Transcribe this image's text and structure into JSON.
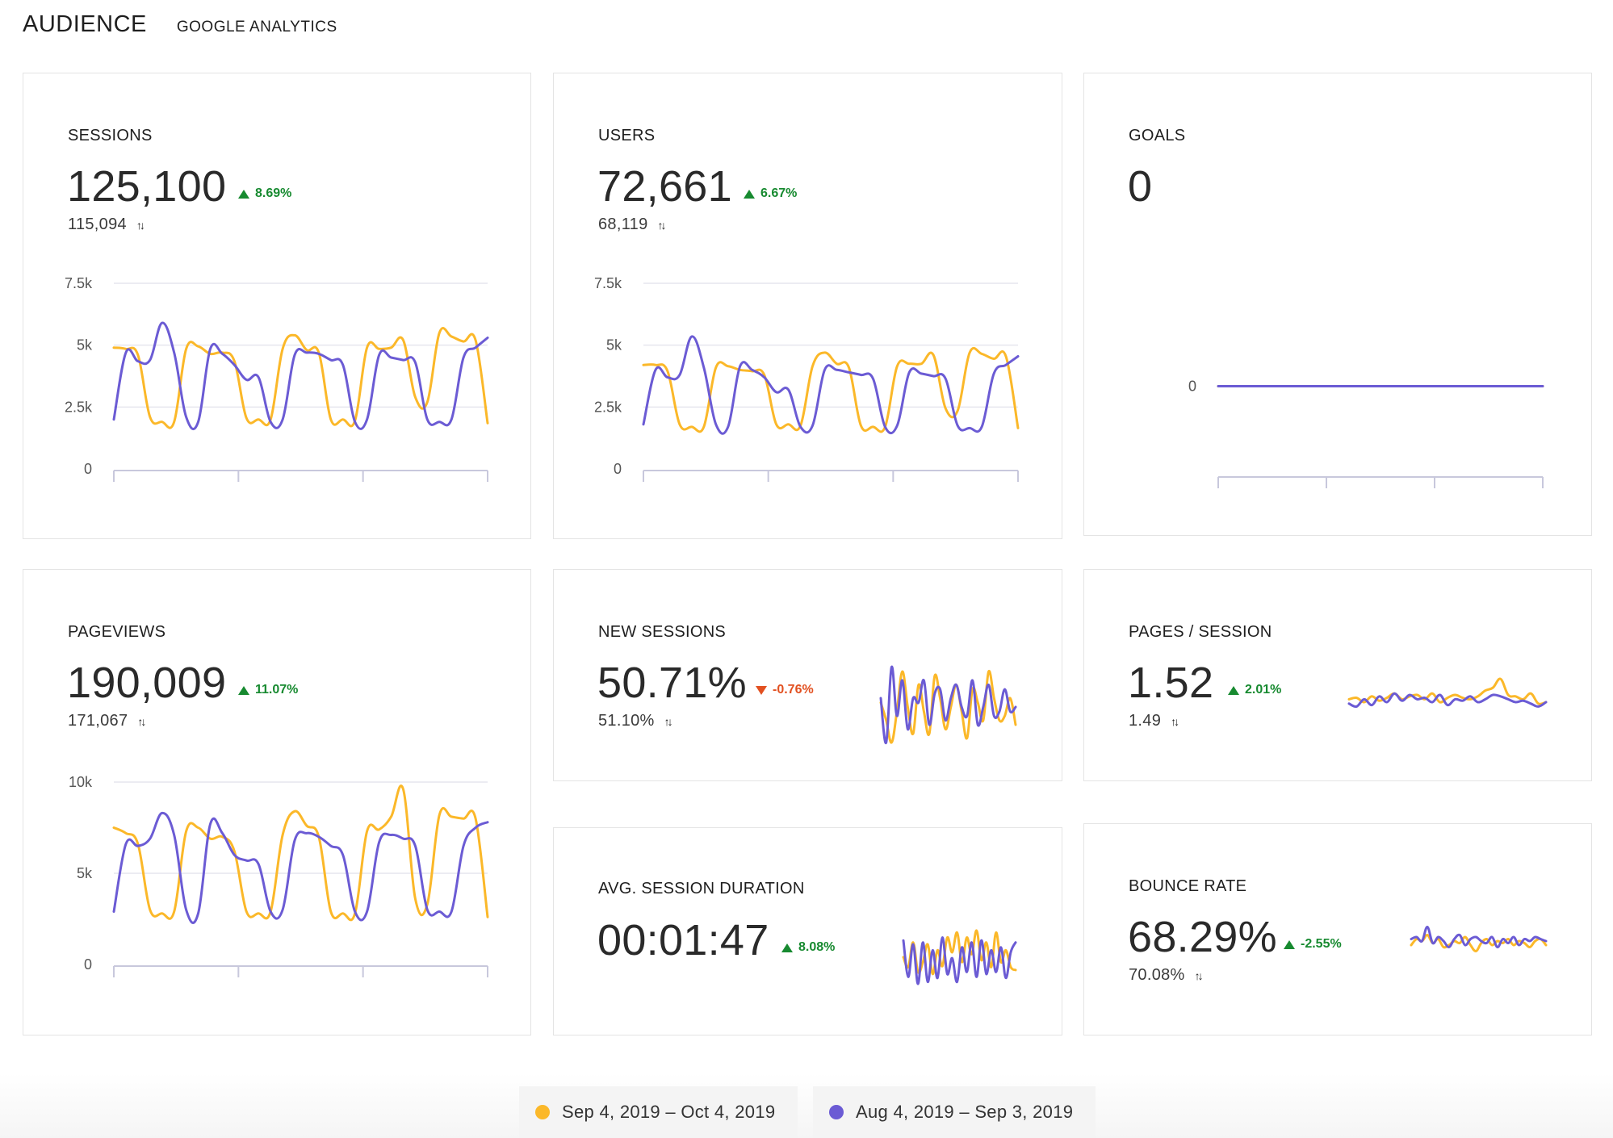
{
  "header": {
    "title": "AUDIENCE",
    "subtitle": "GOOGLE ANALYTICS"
  },
  "colors": {
    "current": "#fbb829",
    "previous": "#6b5bd4",
    "positive": "#178a30",
    "negative": "#e25020"
  },
  "cards": {
    "sessions": {
      "label": "SESSIONS",
      "value": "125,100",
      "delta": "8.69%",
      "trend": "up",
      "previous": "115,094"
    },
    "users": {
      "label": "USERS",
      "value": "72,661",
      "delta": "6.67%",
      "trend": "up",
      "previous": "68,119"
    },
    "goals": {
      "label": "GOALS",
      "value": "0"
    },
    "pageviews": {
      "label": "PAGEVIEWS",
      "value": "190,009",
      "delta": "11.07%",
      "trend": "up",
      "previous": "171,067"
    },
    "new_sessions": {
      "label": "NEW SESSIONS",
      "value": "50.71%",
      "delta": "-0.76%",
      "trend": "down",
      "previous": "51.10%"
    },
    "pages_session": {
      "label": "PAGES / SESSION",
      "value": "1.52",
      "delta": "2.01%",
      "trend": "up",
      "previous": "1.49"
    },
    "avg_duration": {
      "label": "AVG. SESSION DURATION",
      "value": "00:01:47",
      "delta": "8.08%",
      "trend": "up"
    },
    "bounce_rate": {
      "label": "BOUNCE RATE",
      "value": "68.29%",
      "delta": "-2.55%",
      "trend": "up",
      "previous": "70.08%"
    }
  },
  "legend": {
    "current": "Sep 4, 2019 – Oct 4, 2019",
    "previous": "Aug 4, 2019 – Sep 3, 2019"
  },
  "chart_data": [
    {
      "id": "sessions",
      "type": "line",
      "ylim": [
        0,
        7500
      ],
      "yticks": [
        {
          "v": 0,
          "label": "0"
        },
        {
          "v": 2500,
          "label": "2.5k"
        },
        {
          "v": 5000,
          "label": "5k"
        },
        {
          "v": 7500,
          "label": "7.5k"
        }
      ],
      "series": [
        {
          "values": [
            4900,
            4850,
            4600,
            2100,
            1900,
            1900,
            4850,
            4950,
            4650,
            4700,
            4350,
            2050,
            2000,
            2000,
            4850,
            5400,
            4800,
            4700,
            2000,
            2000,
            1950,
            4900,
            4850,
            4900,
            5200,
            2900,
            2700,
            5500,
            5350,
            5150,
            5200,
            1850
          ]
        },
        {
          "values": [
            2000,
            4700,
            4350,
            4400,
            5900,
            4700,
            2100,
            1900,
            4850,
            4650,
            4200,
            3600,
            3700,
            1900,
            2000,
            4600,
            4700,
            4650,
            4400,
            4200,
            1900,
            2000,
            4600,
            4500,
            4400,
            4300,
            2000,
            1900,
            2000,
            4500,
            4900,
            5300
          ]
        }
      ]
    },
    {
      "id": "users",
      "type": "line",
      "ylim": [
        0,
        7500
      ],
      "yticks": [
        {
          "v": 0,
          "label": "0"
        },
        {
          "v": 2500,
          "label": "2.5k"
        },
        {
          "v": 5000,
          "label": "5k"
        },
        {
          "v": 7500,
          "label": "7.5k"
        }
      ],
      "series": [
        {
          "values": [
            4200,
            4200,
            3950,
            1800,
            1700,
            1700,
            4100,
            4150,
            4000,
            3950,
            3800,
            1800,
            1800,
            1750,
            4150,
            4700,
            4250,
            4100,
            1750,
            1700,
            1700,
            4150,
            4250,
            4250,
            4600,
            2450,
            2350,
            4700,
            4650,
            4450,
            4550,
            1650
          ]
        },
        {
          "values": [
            1800,
            4000,
            3700,
            3800,
            5350,
            4100,
            1800,
            1700,
            4150,
            4000,
            3700,
            3100,
            3200,
            1700,
            1750,
            4000,
            4000,
            3900,
            3800,
            3650,
            1700,
            1750,
            3900,
            3850,
            3750,
            3650,
            1750,
            1650,
            1700,
            3850,
            4200,
            4550
          ]
        }
      ]
    },
    {
      "id": "goals",
      "type": "line",
      "ylim": [
        -1,
        1
      ],
      "yticks": [
        {
          "v": 0,
          "label": "0"
        }
      ],
      "series": [
        {
          "values": [
            0,
            0,
            0,
            0,
            0,
            0,
            0,
            0,
            0,
            0,
            0,
            0,
            0,
            0,
            0,
            0,
            0,
            0,
            0,
            0,
            0,
            0,
            0,
            0,
            0,
            0,
            0,
            0,
            0,
            0,
            0,
            0
          ]
        },
        {
          "values": [
            0,
            0,
            0,
            0,
            0,
            0,
            0,
            0,
            0,
            0,
            0,
            0,
            0,
            0,
            0,
            0,
            0,
            0,
            0,
            0,
            0,
            0,
            0,
            0,
            0,
            0,
            0,
            0,
            0,
            0,
            0,
            0
          ]
        }
      ]
    },
    {
      "id": "pageviews",
      "type": "line",
      "ylim": [
        0,
        10000
      ],
      "yticks": [
        {
          "v": 0,
          "label": "0"
        },
        {
          "v": 5000,
          "label": "5k"
        },
        {
          "v": 10000,
          "label": "10k"
        }
      ],
      "series": [
        {
          "values": [
            7500,
            7200,
            6600,
            3000,
            2800,
            2900,
            7300,
            7500,
            6900,
            7000,
            6200,
            2900,
            2800,
            2900,
            7100,
            8400,
            7600,
            7000,
            2900,
            2800,
            2800,
            7300,
            7400,
            8100,
            9600,
            3600,
            3300,
            8200,
            8100,
            8000,
            8000,
            2600
          ]
        },
        {
          "values": [
            2900,
            6600,
            6500,
            6900,
            8300,
            7100,
            3000,
            2800,
            7700,
            7200,
            6000,
            5700,
            5500,
            2900,
            3000,
            6800,
            7200,
            7000,
            6500,
            6000,
            2900,
            2900,
            6700,
            7100,
            6900,
            6500,
            3000,
            2900,
            2900,
            6500,
            7500,
            7800
          ]
        }
      ]
    },
    {
      "id": "new_sessions",
      "type": "line",
      "ylim": [
        40,
        60
      ],
      "series": [
        {
          "values": [
            51,
            47,
            42,
            49,
            58,
            50,
            44,
            55,
            49,
            44,
            57,
            52,
            45,
            50,
            55,
            49,
            43,
            54,
            51,
            47,
            58,
            52,
            47,
            48,
            52,
            46
          ]
        },
        {
          "values": [
            52,
            42,
            59,
            48,
            56,
            45,
            52,
            51,
            56,
            46,
            53,
            54,
            47,
            52,
            55,
            50,
            48,
            56,
            46,
            50,
            55,
            48,
            49,
            54,
            49,
            50
          ]
        }
      ]
    },
    {
      "id": "pages_session",
      "type": "line",
      "ylim": [
        1.3,
        1.8
      ],
      "series": [
        {
          "values": [
            1.52,
            1.53,
            1.5,
            1.54,
            1.51,
            1.53,
            1.56,
            1.52,
            1.54,
            1.55,
            1.52,
            1.56,
            1.5,
            1.53,
            1.55,
            1.53,
            1.52,
            1.54,
            1.58,
            1.6,
            1.66,
            1.55,
            1.54,
            1.52,
            1.56,
            1.49,
            1.5
          ]
        },
        {
          "values": [
            1.49,
            1.47,
            1.52,
            1.48,
            1.54,
            1.5,
            1.56,
            1.51,
            1.55,
            1.52,
            1.53,
            1.5,
            1.55,
            1.48,
            1.52,
            1.51,
            1.54,
            1.5,
            1.52,
            1.55,
            1.54,
            1.52,
            1.5,
            1.51,
            1.49,
            1.47,
            1.5
          ]
        }
      ]
    },
    {
      "id": "avg_duration",
      "type": "line",
      "ylim": [
        60,
        150
      ],
      "series": [
        {
          "values": [
            105,
            95,
            120,
            90,
            100,
            118,
            88,
            112,
            96,
            125,
            110,
            130,
            100,
            125,
            108,
            132,
            102,
            120,
            95,
            130,
            100,
            112,
            95,
            92
          ]
        },
        {
          "values": [
            122,
            85,
            118,
            78,
            120,
            80,
            112,
            84,
            125,
            88,
            104,
            80,
            115,
            90,
            120,
            85,
            122,
            88,
            112,
            90,
            115,
            84,
            110,
            120
          ]
        }
      ]
    },
    {
      "id": "bounce_rate",
      "type": "line",
      "ylim": [
        55,
        85
      ],
      "series": [
        {
          "values": [
            67,
            70,
            69,
            72,
            68,
            70,
            66,
            67,
            69,
            68,
            71,
            67,
            64,
            68,
            70,
            67,
            69,
            68,
            70,
            67,
            69,
            68,
            66,
            69,
            70,
            67
          ]
        },
        {
          "values": [
            70,
            71,
            69,
            76,
            68,
            71,
            69,
            66,
            70,
            72,
            67,
            70,
            71,
            69,
            68,
            71,
            66,
            70,
            68,
            71,
            67,
            70,
            69,
            71,
            70,
            69
          ]
        }
      ]
    }
  ]
}
